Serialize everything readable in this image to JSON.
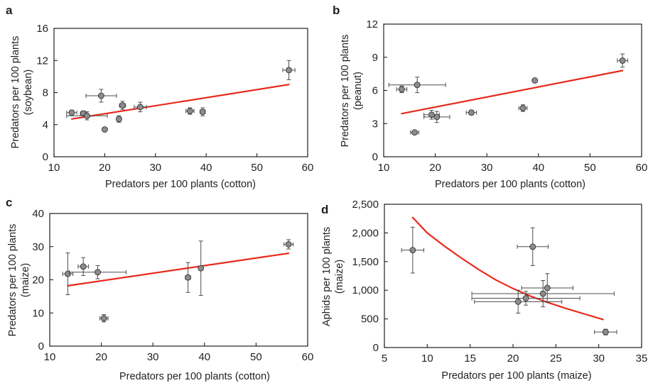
{
  "chart_data": [
    {
      "panel": "a",
      "type": "scatter",
      "xlabel": "Predators per 100 plants (cotton)",
      "ylabel": "Predators per 100 plants (soybean)",
      "xlim": [
        10,
        60
      ],
      "ylim": [
        0,
        16
      ],
      "xticks": [
        10,
        20,
        30,
        40,
        50,
        60
      ],
      "yticks": [
        0,
        4,
        8,
        12,
        16
      ],
      "points": [
        {
          "x": 13.5,
          "y": 5.5,
          "xerr": 1.0,
          "yerr": 0.3
        },
        {
          "x": 15.8,
          "y": 5.4,
          "xerr": 0.6,
          "yerr": 0.3
        },
        {
          "x": 16.5,
          "y": 5.1,
          "xerr": 4.0,
          "yerr": 0.5
        },
        {
          "x": 19.3,
          "y": 7.6,
          "xerr": 3.0,
          "yerr": 0.8
        },
        {
          "x": 20.0,
          "y": 3.4,
          "xerr": 0,
          "yerr": 0
        },
        {
          "x": 22.8,
          "y": 4.7,
          "xerr": 0.4,
          "yerr": 0.4
        },
        {
          "x": 23.5,
          "y": 6.4,
          "xerr": 0.6,
          "yerr": 0.5
        },
        {
          "x": 27.0,
          "y": 6.2,
          "xerr": 1.2,
          "yerr": 0.6
        },
        {
          "x": 36.8,
          "y": 5.7,
          "xerr": 0.8,
          "yerr": 0.4
        },
        {
          "x": 39.3,
          "y": 5.6,
          "xerr": 0.5,
          "yerr": 0.5
        },
        {
          "x": 56.3,
          "y": 10.8,
          "xerr": 1.2,
          "yerr": 1.2
        }
      ],
      "fit": [
        [
          13.5,
          4.7
        ],
        [
          56.3,
          9.0
        ]
      ]
    },
    {
      "panel": "b",
      "type": "scatter",
      "xlabel": "Predators per 100 plants (cotton)",
      "ylabel": "Predators per 100 plants (peanut)",
      "xlim": [
        10,
        60
      ],
      "ylim": [
        0,
        12
      ],
      "xticks": [
        10,
        20,
        30,
        40,
        50,
        60
      ],
      "yticks": [
        0,
        3,
        6,
        9,
        12
      ],
      "points": [
        {
          "x": 13.5,
          "y": 6.1,
          "xerr": 1.0,
          "yerr": 0.3
        },
        {
          "x": 16.5,
          "y": 6.5,
          "xerr": 5.5,
          "yerr": 0.7
        },
        {
          "x": 16.0,
          "y": 2.2,
          "xerr": 0.8,
          "yerr": 0.1
        },
        {
          "x": 19.3,
          "y": 3.8,
          "xerr": 1.5,
          "yerr": 0.4
        },
        {
          "x": 20.3,
          "y": 3.6,
          "xerr": 2.5,
          "yerr": 0.5
        },
        {
          "x": 27.0,
          "y": 4.0,
          "xerr": 1.0,
          "yerr": 0.2
        },
        {
          "x": 37.0,
          "y": 4.4,
          "xerr": 0.8,
          "yerr": 0.3
        },
        {
          "x": 39.3,
          "y": 6.9,
          "xerr": 0,
          "yerr": 0
        },
        {
          "x": 56.3,
          "y": 8.7,
          "xerr": 1.0,
          "yerr": 0.6
        }
      ],
      "fit": [
        [
          13.5,
          3.9
        ],
        [
          56.3,
          7.8
        ]
      ]
    },
    {
      "panel": "c",
      "type": "scatter",
      "xlabel": "Predators per 100 plants (cotton)",
      "ylabel": "Predators per 100 plants (maize)",
      "xlim": [
        10,
        60
      ],
      "ylim": [
        0,
        40
      ],
      "xticks": [
        10,
        20,
        30,
        40,
        50,
        60
      ],
      "yticks": [
        0,
        10,
        20,
        30,
        40
      ],
      "points": [
        {
          "x": 13.5,
          "y": 21.8,
          "xerr": 1.0,
          "yerr": 6.3
        },
        {
          "x": 16.5,
          "y": 24.0,
          "xerr": 1.0,
          "yerr": 2.7
        },
        {
          "x": 19.3,
          "y": 22.3,
          "xerr": 5.5,
          "yerr": 2.0
        },
        {
          "x": 20.5,
          "y": 8.4,
          "xerr": 0.8,
          "yerr": 1.1
        },
        {
          "x": 36.8,
          "y": 20.7,
          "xerr": 0.5,
          "yerr": 4.5
        },
        {
          "x": 39.3,
          "y": 23.5,
          "xerr": 0.3,
          "yerr": 8.2
        },
        {
          "x": 56.3,
          "y": 30.7,
          "xerr": 0.9,
          "yerr": 1.4
        }
      ],
      "fit": [
        [
          13.5,
          18.2
        ],
        [
          56.3,
          28.0
        ]
      ]
    },
    {
      "panel": "d",
      "type": "scatter",
      "xlabel": "Predators per 100 plants (maize)",
      "ylabel": "Aphids per 100 plants (maize)",
      "xlim": [
        5,
        35
      ],
      "ylim": [
        0,
        2500
      ],
      "xticks": [
        5,
        10,
        15,
        20,
        25,
        30,
        35
      ],
      "yticks": [
        0,
        500,
        1000,
        1500,
        2000,
        2500
      ],
      "ytick_labels": [
        "0",
        "500",
        "1,000",
        "1,500",
        "2,000",
        "2,500"
      ],
      "points": [
        {
          "x": 8.3,
          "y": 1700,
          "xerr": 1.3,
          "yerr": 400
        },
        {
          "x": 22.3,
          "y": 1760,
          "xerr": 1.8,
          "yerr": 330
        },
        {
          "x": 24.0,
          "y": 1040,
          "xerr": 3.0,
          "yerr": 250
        },
        {
          "x": 23.5,
          "y": 940,
          "xerr": 8.3,
          "yerr": 230
        },
        {
          "x": 21.5,
          "y": 860,
          "xerr": 6.3,
          "yerr": 120
        },
        {
          "x": 20.6,
          "y": 800,
          "xerr": 5.1,
          "yerr": 200
        },
        {
          "x": 30.8,
          "y": 270,
          "xerr": 1.3,
          "yerr": 50
        }
      ],
      "fit": [
        [
          8.3,
          2270
        ],
        [
          10,
          2000
        ],
        [
          12,
          1770
        ],
        [
          14,
          1560
        ],
        [
          16,
          1360
        ],
        [
          18,
          1180
        ],
        [
          20,
          1030
        ],
        [
          22,
          900
        ],
        [
          24,
          790
        ],
        [
          26,
          690
        ],
        [
          28,
          600
        ],
        [
          30.5,
          490
        ]
      ]
    }
  ],
  "style": {
    "fit_color": "#e8291c",
    "point_fill": "#8c8c8c",
    "point_stroke": "#333333",
    "errorbar_color": "#4d4d4d",
    "axis_color": "#231f20"
  }
}
